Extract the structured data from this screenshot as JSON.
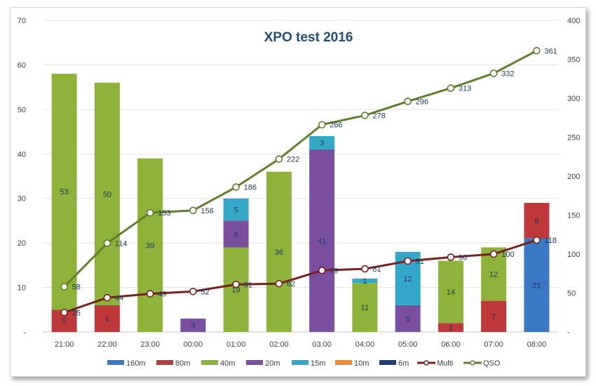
{
  "chart_data": {
    "type": "bar",
    "title": "XPO test 2016",
    "categories": [
      "21:00",
      "22:00",
      "23:00",
      "00:00",
      "01:00",
      "02:00",
      "03:00",
      "04:00",
      "05:00",
      "06:00",
      "07:00",
      "08:00"
    ],
    "y_left_range": [
      0,
      70
    ],
    "y_left_ticks": [
      0,
      10,
      20,
      30,
      40,
      50,
      60,
      70
    ],
    "y_left_zero_label": "-",
    "y_right_range": [
      0,
      400
    ],
    "y_right_ticks": [
      0,
      50,
      100,
      150,
      200,
      250,
      300,
      350,
      400
    ],
    "y_right_zero_label": "-",
    "series": [
      {
        "name": "160m",
        "kind": "bar",
        "color": "#3a78c3",
        "values": [
          0,
          0,
          0,
          0,
          0,
          0,
          0,
          0,
          0,
          0,
          0,
          21
        ]
      },
      {
        "name": "80m",
        "kind": "bar",
        "color": "#c0393a",
        "values": [
          5,
          6,
          0,
          0,
          0,
          0,
          0,
          0,
          0,
          2,
          7,
          8
        ]
      },
      {
        "name": "40m",
        "kind": "bar",
        "color": "#8db33a",
        "values": [
          53,
          50,
          39,
          0,
          19,
          36,
          0,
          11,
          0,
          14,
          12,
          0
        ]
      },
      {
        "name": "20m",
        "kind": "bar",
        "color": "#7a4fa0",
        "values": [
          0,
          0,
          0,
          3,
          6,
          0,
          41,
          0,
          6,
          0,
          0,
          0
        ]
      },
      {
        "name": "15m",
        "kind": "bar",
        "color": "#33a8c8",
        "values": [
          0,
          0,
          0,
          0,
          5,
          0,
          3,
          1,
          12,
          0,
          0,
          0
        ]
      },
      {
        "name": "10m",
        "kind": "bar",
        "color": "#f08c2a",
        "values": [
          0,
          0,
          0,
          0,
          0,
          0,
          0,
          0,
          0,
          0,
          0,
          0
        ]
      },
      {
        "name": "6m",
        "kind": "bar",
        "color": "#1f3e73",
        "values": [
          0,
          0,
          0,
          0,
          0,
          0,
          0,
          0,
          0,
          0,
          0,
          0
        ]
      },
      {
        "name": "Multi",
        "kind": "line",
        "axis": "right",
        "color": "#7b1f1f",
        "values": [
          25,
          44,
          49,
          52,
          61,
          62,
          79,
          81,
          91,
          96,
          100,
          118
        ]
      },
      {
        "name": "QSO",
        "kind": "line",
        "axis": "right",
        "color": "#5f7f2a",
        "values": [
          58,
          114,
          153,
          156,
          186,
          222,
          266,
          278,
          296,
          313,
          332,
          361
        ]
      }
    ]
  }
}
